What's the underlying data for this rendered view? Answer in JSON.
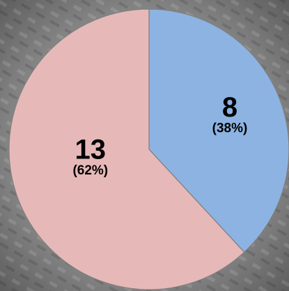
{
  "chart_data": {
    "type": "pie",
    "values": [
      8,
      13
    ],
    "percent_labels": [
      "(38%)",
      "(62%)"
    ],
    "colors": [
      "#8db3e2",
      "#e6b9b8"
    ]
  }
}
